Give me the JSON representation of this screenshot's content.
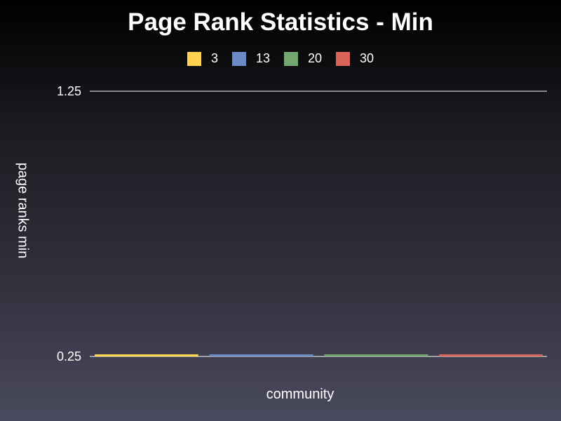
{
  "chart_data": {
    "type": "bar",
    "title": "Page Rank Statistics - Min",
    "xlabel": "community",
    "ylabel": "page ranks min",
    "categories": [
      ""
    ],
    "series": [
      {
        "name": "3",
        "values": [
          0.25
        ],
        "color": "#ffd34d"
      },
      {
        "name": "13",
        "values": [
          0.25
        ],
        "color": "#6a8cc4"
      },
      {
        "name": "20",
        "values": [
          0.25
        ],
        "color": "#72a86e"
      },
      {
        "name": "30",
        "values": [
          0.25
        ],
        "color": "#d9655a"
      }
    ],
    "ylim": [
      0.25,
      1.25
    ],
    "yticks": [
      "0.25",
      "1.25"
    ],
    "legend": "top-center",
    "grid": true
  }
}
